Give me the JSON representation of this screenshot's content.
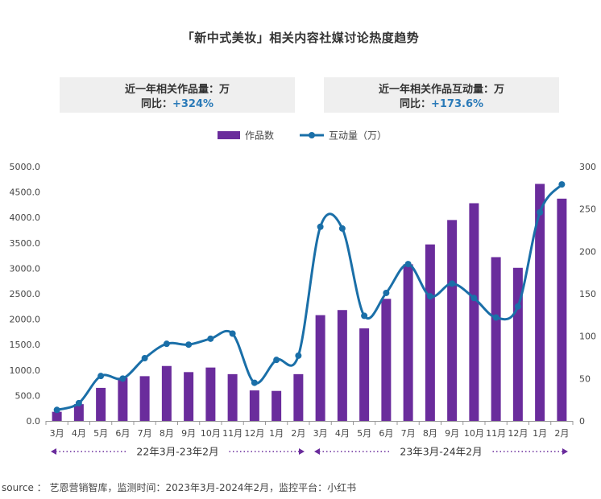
{
  "title": "「新中式美妆」相关内容社媒讨论热度趋势",
  "summary": {
    "works": {
      "label": "近一年相关作品量：万",
      "growth_label": "同比：",
      "growth_value": "+324%"
    },
    "interactions": {
      "label": "近一年相关作品互动量：万",
      "growth_label": "同比：",
      "growth_value": "+173.6%"
    }
  },
  "periods": [
    {
      "label": "22年3月-23年2月"
    },
    {
      "label": "23年3月-24年2月"
    }
  ],
  "source": "source ： 艺恩营销智库，监测时间：2023年3月-2024年2月，监控平台：小红书",
  "colors": {
    "bar": "#6a2c9c",
    "line": "#1a6fa8",
    "arrow": "#6a2c9c"
  },
  "chart_data": {
    "type": "bar",
    "categories": [
      "3月",
      "4月",
      "5月",
      "6月",
      "7月",
      "8月",
      "9月",
      "10月",
      "11月",
      "12月",
      "1月",
      "2月",
      "3月",
      "4月",
      "5月",
      "6月",
      "7月",
      "8月",
      "9月",
      "10月",
      "11月",
      "12月",
      "1月",
      "2月"
    ],
    "series": [
      {
        "name": "作品数",
        "type": "bar",
        "axis": "left",
        "values": [
          180,
          330,
          650,
          850,
          880,
          1080,
          960,
          1050,
          920,
          600,
          590,
          920,
          2080,
          2180,
          1820,
          2400,
          3080,
          3470,
          3950,
          4280,
          3220,
          3010,
          4660,
          4370
        ]
      },
      {
        "name": "互动量（万）",
        "type": "line",
        "axis": "right",
        "values": [
          13,
          21,
          53,
          50,
          74,
          91,
          90,
          97,
          103,
          45,
          72,
          77,
          229,
          227,
          124,
          151,
          185,
          147,
          162,
          145,
          122,
          135,
          246,
          279
        ]
      }
    ],
    "y_left": {
      "ticks": [
        "0.0",
        "500.0",
        "1000.0",
        "1500.0",
        "2000.0",
        "2500.0",
        "3000.0",
        "3500.0",
        "4000.0",
        "4500.0",
        "5000.0"
      ],
      "ylim": [
        0,
        5000
      ]
    },
    "y_right": {
      "ticks": [
        "0",
        "50",
        "100",
        "150",
        "200",
        "250",
        "300"
      ],
      "ylim": [
        0,
        300
      ]
    },
    "grid": false,
    "legend_position": "top-center"
  }
}
